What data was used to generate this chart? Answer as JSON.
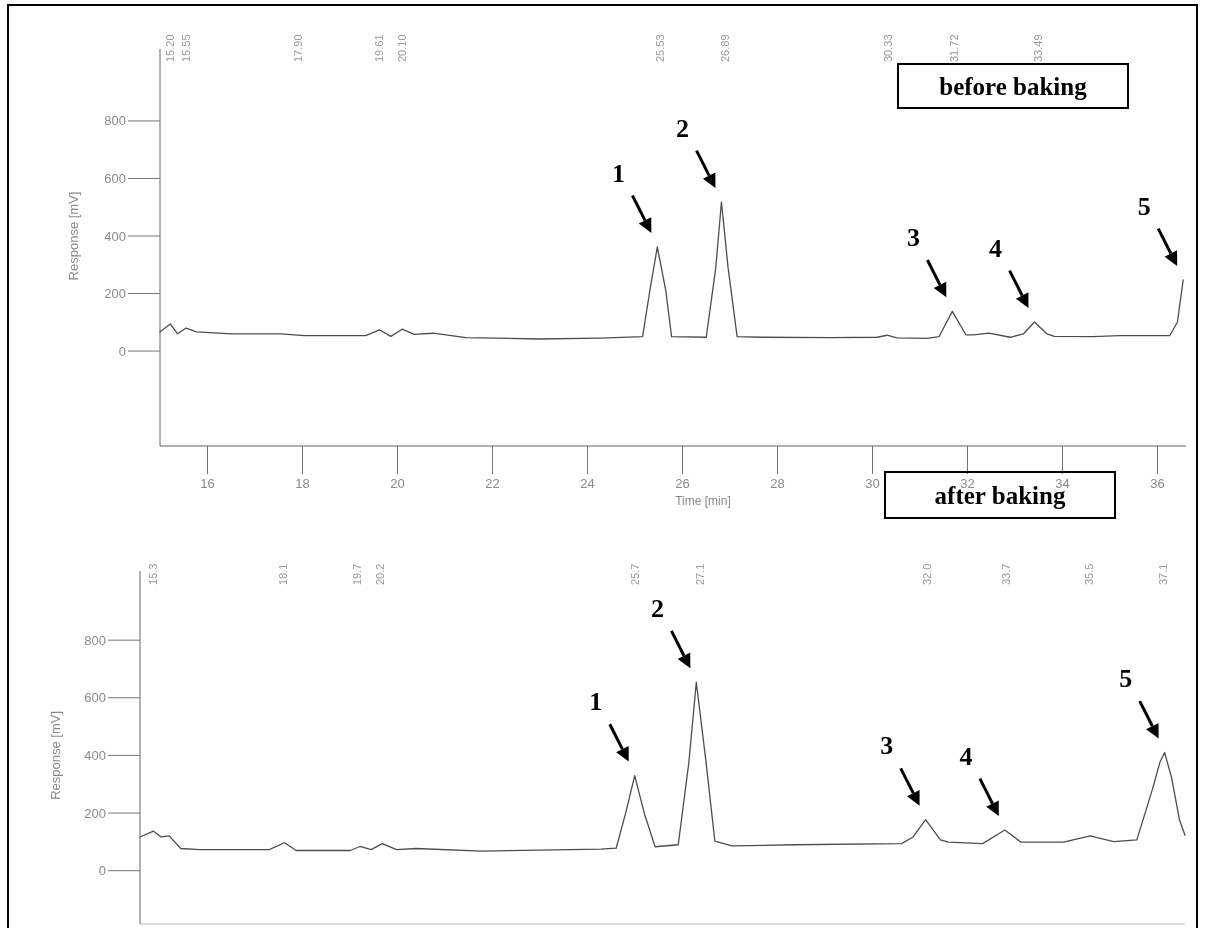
{
  "chart_data": [
    {
      "type": "line",
      "title": "before baking",
      "xlabel": "Time [min]",
      "ylabel": "Response [mV]",
      "xlim": [
        15.0,
        36.6
      ],
      "ylim": [
        -330,
        1050
      ],
      "x2lim": [
        15.0,
        36.6
      ],
      "x2ticks": [
        {
          "value": 15.2,
          "label": "15.20"
        },
        15.55,
        {
          "value": 17.9,
          "label": "17.90"
        },
        19.61,
        {
          "value": 20.1,
          "label": "20.10"
        },
        25.53,
        26.89,
        30.33,
        31.72,
        33.49
      ],
      "xticks": [
        16,
        18,
        20,
        22,
        24,
        26,
        28,
        30,
        32,
        34,
        36
      ],
      "yticks": [
        0,
        200,
        400,
        600,
        800
      ],
      "series": [
        {
          "color": "#4d4d4d",
          "x": [
            15.0,
            15.22,
            15.37,
            15.55,
            15.77,
            16.5,
            17.55,
            18.04,
            19.33,
            19.62,
            19.86,
            20.1,
            20.35,
            20.75,
            21.44,
            22.98,
            24.27,
            25.16,
            25.31,
            25.47,
            25.65,
            25.77,
            26.5,
            26.7,
            26.82,
            26.96,
            27.15,
            27.67,
            29.13,
            30.1,
            30.31,
            30.51,
            31.16,
            31.4,
            31.68,
            31.97,
            32.13,
            32.45,
            32.9,
            33.18,
            33.41,
            33.67,
            33.83,
            34.64,
            35.2,
            36.26,
            36.42,
            36.54
          ],
          "values": [
            67,
            94,
            60,
            80,
            67,
            60,
            60,
            54,
            54,
            74,
            51,
            76,
            58,
            62,
            47,
            42,
            45,
            50,
            208,
            362,
            208,
            50,
            48,
            289,
            518,
            289,
            50,
            48,
            47,
            48,
            55,
            46,
            44,
            50,
            138,
            56,
            56,
            62,
            48,
            60,
            101,
            60,
            51,
            50,
            54,
            54,
            101,
            247
          ]
        }
      ],
      "annotations": [
        {
          "text": "1",
          "x": 25.47,
          "y": 362
        },
        {
          "text": "2",
          "x": 26.82,
          "y": 518
        },
        {
          "text": "3",
          "x": 31.68,
          "y": 138
        },
        {
          "text": "4",
          "x": 33.41,
          "y": 101
        },
        {
          "text": "5",
          "x": 36.54,
          "y": 247
        }
      ]
    },
    {
      "type": "line",
      "title": "after baking",
      "ylabel": "Response [mV]",
      "xlim": [
        15.01,
        37.57
      ],
      "ylim": [
        -185,
        1040
      ],
      "xticks": [
        15.3,
        18.1,
        19.7,
        20.2,
        25.7,
        27.1,
        {
          "value": 32.0,
          "label": "32.0"
        },
        33.7,
        35.5,
        37.1
      ],
      "yticks": [
        0,
        200,
        400,
        600,
        800
      ],
      "series": [
        {
          "color": "#4d4d4d",
          "x": [
            15.01,
            15.3,
            15.47,
            15.64,
            15.89,
            16.3,
            17.8,
            18.13,
            18.38,
            19.55,
            19.76,
            20.0,
            20.24,
            20.55,
            20.97,
            22.38,
            24.96,
            25.29,
            25.5,
            25.69,
            25.89,
            26.13,
            26.63,
            26.86,
            27.02,
            27.23,
            27.42,
            27.79,
            29.13,
            31.45,
            31.7,
            31.97,
            32.29,
            32.46,
            33.2,
            33.68,
            34.03,
            34.95,
            35.52,
            36.03,
            36.53,
            36.87,
            37.03,
            37.13,
            37.28,
            37.45,
            37.57
          ],
          "values": [
            117,
            137,
            117,
            121,
            77,
            73,
            73,
            97,
            70,
            70,
            84,
            73,
            94,
            73,
            77,
            68,
            75,
            78,
            203,
            330,
            203,
            83,
            90,
            377,
            654,
            377,
            103,
            86,
            90,
            94,
            117,
            177,
            107,
            99,
            94,
            141,
            99,
            99,
            121,
            101,
            107,
            284,
            377,
            410,
            323,
            177,
            123
          ]
        }
      ],
      "annotations": [
        {
          "text": "1",
          "x": 25.69,
          "y": 330
        },
        {
          "text": "2",
          "x": 27.02,
          "y": 654
        },
        {
          "text": "3",
          "x": 31.97,
          "y": 177
        },
        {
          "text": "4",
          "x": 33.68,
          "y": 141
        },
        {
          "text": "5",
          "x": 37.13,
          "y": 410
        }
      ]
    }
  ]
}
